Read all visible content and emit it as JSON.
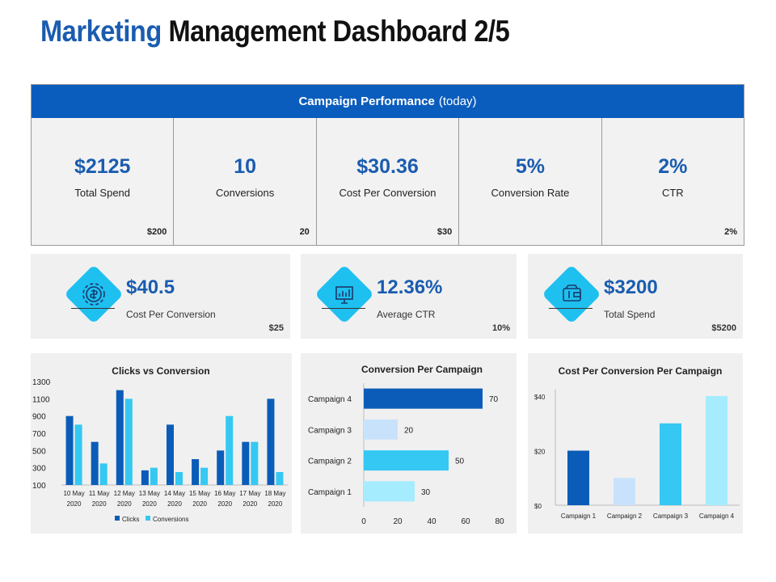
{
  "title": {
    "part1": "Marketing",
    "part2": "Management Dashboard 2/5"
  },
  "campaign_performance": {
    "heading_bold": "Campaign Performance",
    "heading_light": "(today)",
    "cells": [
      {
        "value": "$2125",
        "label": "Total Spend",
        "target": "$200"
      },
      {
        "value": "10",
        "label": "Conversions",
        "target": "20"
      },
      {
        "value": "$30.36",
        "label": "Cost Per Conversion",
        "target": "$30"
      },
      {
        "value": "5%",
        "label": "Conversion Rate",
        "target": ""
      },
      {
        "value": "2%",
        "label": "CTR",
        "target": "2%"
      }
    ]
  },
  "kpis": [
    {
      "value": "$40.5",
      "label": "Cost Per Conversion",
      "target": "$25",
      "icon": "money-settings-icon"
    },
    {
      "value": "12.36%",
      "label": "Average  CTR",
      "target": "10%",
      "icon": "chart-presentation-icon"
    },
    {
      "value": "$3200",
      "label": "Total Spend",
      "target": "$5200",
      "icon": "wallet-icon"
    }
  ],
  "colors": {
    "primary": "#0b5dbd",
    "dark_blue": "#0b5cb8",
    "cyan": "#35c8f2",
    "light_blue": "#c9e2fb",
    "pale_cyan": "#a5ecff",
    "accent": "#1ec0f0"
  },
  "chart_data": [
    {
      "type": "bar",
      "title": "Clicks vs Conversion",
      "categories": [
        "10 May 2020",
        "11 May 2020",
        "12 May 2020",
        "13 May 2020",
        "14 May 2020",
        "15 May 2020",
        "16 May 2020",
        "17 May 2020",
        "18 May 2020"
      ],
      "series": [
        {
          "name": "Clicks",
          "values": [
            900,
            600,
            1200,
            270,
            800,
            400,
            500,
            600,
            1100
          ]
        },
        {
          "name": "Conversions",
          "values": [
            800,
            350,
            1100,
            300,
            250,
            300,
            900,
            600,
            250
          ]
        }
      ],
      "yticks": [
        "1300",
        "1100",
        "900",
        "700",
        "500",
        "300",
        "100"
      ],
      "ylim": [
        100,
        1300
      ],
      "legend": "bottom"
    },
    {
      "type": "bar",
      "orientation": "horizontal",
      "title": "Conversion  Per Campaign",
      "categories": [
        "Campaign 4",
        "Campaign 3",
        "Campaign 2",
        "Campaign 1"
      ],
      "values": [
        70,
        20,
        50,
        30
      ],
      "labels": [
        "70",
        "20",
        "50",
        "30"
      ],
      "xticks": [
        "0",
        "20",
        "40",
        "60",
        "80"
      ],
      "xlim": [
        0,
        80
      ]
    },
    {
      "type": "bar",
      "title": "Cost Per Conversion Per Campaign",
      "categories": [
        "Campaign 1",
        "Campaign 2",
        "Campaign 3",
        "Campaign 4"
      ],
      "values": [
        20,
        10,
        30,
        40
      ],
      "yticks": [
        "$40",
        "$20",
        "$0"
      ],
      "ylim": [
        0,
        40
      ]
    }
  ]
}
